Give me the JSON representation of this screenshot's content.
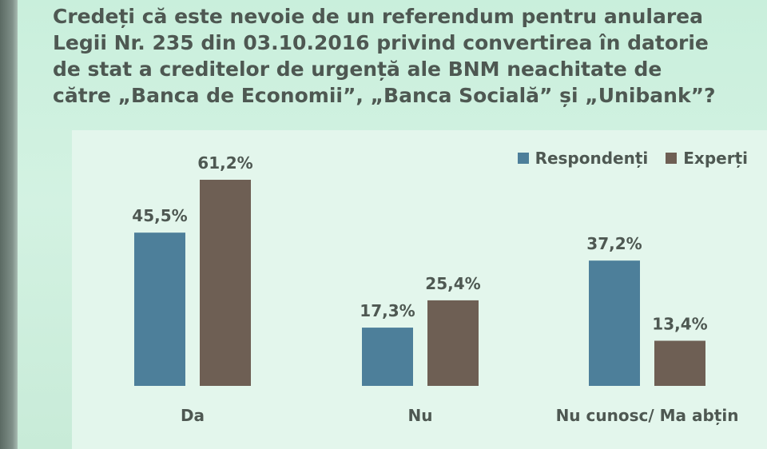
{
  "title": "Credeți că este nevoie de un referendum pentru anularea Legii Nr. 235 din 03.10.2016 privind convertirea în datorie de stat a creditelor de urgență ale BNM neachitate de către „Banca de Economii”, „Banca Socială” și „Unibank”?",
  "colors": {
    "respondenti": "#4d7f9a",
    "experti": "#6e5f54",
    "text": "#4e5852"
  },
  "chart_data": {
    "type": "bar",
    "title": "Credeți că este nevoie de un referendum pentru anularea Legii Nr. 235 din 03.10.2016 privind convertirea în datorie de stat a creditelor de urgență ale BNM neachitate de către „Banca de Economii”, „Banca Socială” și „Unibank”?",
    "categories": [
      "Da",
      "Nu",
      "Nu cunosc/ Ma abțin"
    ],
    "series": [
      {
        "name": "Respondenți",
        "values": [
          45.5,
          17.3,
          37.2
        ],
        "labels": [
          "45,5%",
          "17,3%",
          "37,2%"
        ]
      },
      {
        "name": "Experți",
        "values": [
          61.2,
          25.4,
          13.4
        ],
        "labels": [
          "61,2%",
          "25,4%",
          "13,4%"
        ]
      }
    ],
    "xlabel": "",
    "ylabel": "",
    "ylim": [
      0,
      70
    ],
    "grid": false,
    "legend_position": "top-right"
  }
}
